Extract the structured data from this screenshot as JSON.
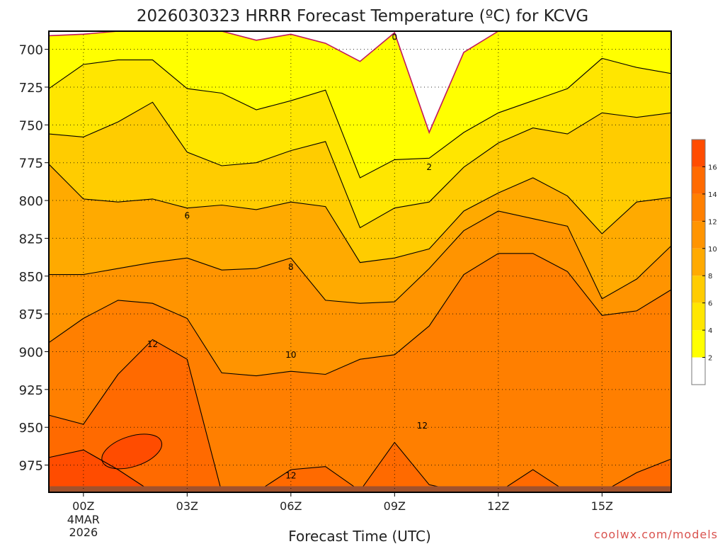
{
  "chart_data": {
    "type": "area",
    "title": "2026030323 HRRR Forecast Temperature (ºC) for KCVG",
    "xlabel": "Forecast Time (UTC)",
    "ylabel": "",
    "watermark": "coolwx.com/models",
    "x_hours": [
      -1,
      0,
      1,
      2,
      3,
      4,
      5,
      6,
      7,
      8,
      9,
      10,
      11,
      12,
      13,
      14,
      15,
      16,
      17
    ],
    "x_ticks": [
      {
        "hour": 0,
        "label": "00Z",
        "sub": [
          "4MAR",
          "2026"
        ]
      },
      {
        "hour": 3,
        "label": "03Z"
      },
      {
        "hour": 6,
        "label": "06Z"
      },
      {
        "hour": 9,
        "label": "09Z"
      },
      {
        "hour": 12,
        "label": "12Z"
      },
      {
        "hour": 15,
        "label": "15Z"
      }
    ],
    "xlim": [
      -1,
      17
    ],
    "y_ticks": [
      700,
      725,
      750,
      775,
      800,
      825,
      850,
      875,
      900,
      925,
      950,
      975
    ],
    "ylim": [
      688,
      993
    ],
    "y_scale": "linear pressure (hPa), inverted",
    "grid": true,
    "surface_pressure_hPa": 989,
    "surface_color": "#a0522d",
    "isotherm_pressures": {
      "t0": [
        691,
        690,
        688,
        688,
        688,
        688,
        694,
        690,
        696,
        708,
        689,
        755,
        702,
        688,
        688,
        688,
        688,
        688,
        688
      ],
      "t2": [
        726,
        710,
        707,
        707,
        726,
        729,
        740,
        734,
        727,
        785,
        773,
        772,
        755,
        742,
        734,
        726,
        706,
        712,
        716
      ],
      "t4": [
        756,
        758,
        748,
        735,
        768,
        777,
        775,
        767,
        761,
        818,
        805,
        801,
        778,
        762,
        752,
        756,
        742,
        745,
        742
      ],
      "t6": [
        776,
        799,
        801,
        799,
        805,
        803,
        806,
        801,
        804,
        841,
        838,
        832,
        807,
        795,
        785,
        797,
        822,
        801,
        798
      ],
      "t8": [
        849,
        849,
        845,
        841,
        838,
        846,
        845,
        838,
        866,
        868,
        867,
        845,
        820,
        807,
        812,
        817,
        865,
        852,
        830
      ],
      "t10": [
        894,
        878,
        866,
        868,
        878,
        914,
        916,
        913,
        915,
        905,
        902,
        883,
        849,
        835,
        835,
        847,
        876,
        873,
        859
      ],
      "t12": [
        942,
        948,
        915,
        892,
        905,
        993,
        993,
        978,
        976,
        992,
        960,
        988,
        993,
        993,
        978,
        993,
        993,
        980,
        971
      ],
      "t14": [
        970,
        965,
        978,
        993,
        993,
        993,
        993,
        993,
        993,
        993,
        993,
        993,
        993,
        993,
        993,
        993,
        993,
        993,
        993
      ]
    },
    "warm_core_16C": {
      "hour_range": [
        0.5,
        2.3
      ],
      "pressure_range": [
        956,
        976
      ]
    },
    "contour_labels": [
      {
        "text": "0",
        "hour": 9,
        "hPa": 692
      },
      {
        "text": "2",
        "hour": 10,
        "hPa": 778
      },
      {
        "text": "6",
        "hour": 3,
        "hPa": 810
      },
      {
        "text": "8",
        "hour": 6,
        "hPa": 844
      },
      {
        "text": "10",
        "hour": 6,
        "hPa": 902
      },
      {
        "text": "12",
        "hour": 2,
        "hPa": 895
      },
      {
        "text": "12",
        "hour": 9.8,
        "hPa": 949
      },
      {
        "text": "12",
        "hour": 6,
        "hPa": 982
      }
    ],
    "colorbar": {
      "levels": [
        0,
        2,
        4,
        6,
        8,
        10,
        12,
        14,
        16,
        18
      ],
      "tick_labels": [
        "2",
        "4",
        "6",
        "8",
        "10",
        "12",
        "14",
        "16"
      ],
      "colors": [
        "#ffffff",
        "#ffff00",
        "#ffe600",
        "#ffcc00",
        "#ffaa00",
        "#ff9400",
        "#ff7f00",
        "#ff6a00",
        "#ff4c00"
      ]
    }
  }
}
